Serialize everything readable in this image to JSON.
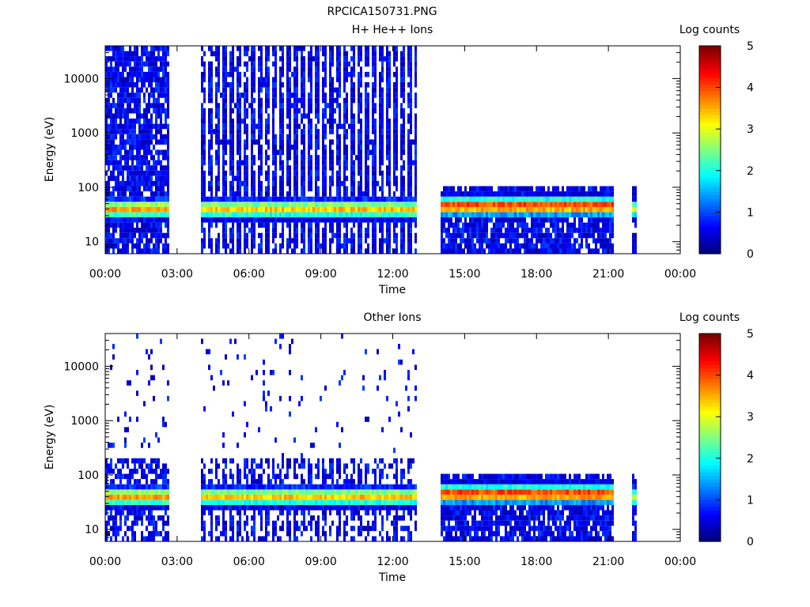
{
  "figure": {
    "filename_title": "RPCICA150731.PNG"
  },
  "chart_data": [
    {
      "type": "heatmap",
      "title": "H+ He++ Ions",
      "xlabel": "Time",
      "ylabel": "Energy (eV)",
      "yscale": "log",
      "ylim": [
        6,
        40000
      ],
      "xlim_hours": [
        0,
        24
      ],
      "x_tick_labels": [
        "00:00",
        "03:00",
        "06:00",
        "09:00",
        "12:00",
        "15:00",
        "18:00",
        "21:00",
        "00:00"
      ],
      "y_ticks": [
        10,
        100,
        1000,
        10000
      ],
      "y_tick_labels": [
        "10",
        "100",
        "1000",
        "10000"
      ],
      "colorbar": {
        "label": "Log counts",
        "range": [
          0,
          5
        ],
        "tick_labels": [
          "0",
          "1",
          "2",
          "3",
          "4",
          "5"
        ],
        "colormap": "jet"
      },
      "segments": [
        {
          "start_hour": 0.0,
          "end_hour": 2.65,
          "emax": 40000,
          "pattern": "dense",
          "peak_ev": 40,
          "peak_level": 3.6
        },
        {
          "start_hour": 4.0,
          "end_hour": 12.95,
          "emax": 40000,
          "pattern": "striped",
          "peak_ev": 40,
          "peak_level": 3.4
        },
        {
          "start_hour": 14.0,
          "end_hour": 21.2,
          "emax": 100,
          "pattern": "dense",
          "peak_ev": 45,
          "peak_level": 4.2
        },
        {
          "start_hour": 22.0,
          "end_hour": 22.2,
          "emax": 100,
          "pattern": "dense",
          "peak_ev": 40,
          "peak_level": 3.0
        }
      ]
    },
    {
      "type": "heatmap",
      "title": "Other Ions",
      "xlabel": "Time",
      "ylabel": "Energy (eV)",
      "yscale": "log",
      "ylim": [
        6,
        40000
      ],
      "xlim_hours": [
        0,
        24
      ],
      "x_tick_labels": [
        "00:00",
        "03:00",
        "06:00",
        "09:00",
        "12:00",
        "15:00",
        "18:00",
        "21:00",
        "00:00"
      ],
      "y_ticks": [
        10,
        100,
        1000,
        10000
      ],
      "y_tick_labels": [
        "10",
        "100",
        "1000",
        "10000"
      ],
      "colorbar": {
        "label": "Log counts",
        "range": [
          0,
          5
        ],
        "tick_labels": [
          "0",
          "1",
          "2",
          "3",
          "4",
          "5"
        ],
        "colormap": "jet"
      },
      "segments": [
        {
          "start_hour": 0.0,
          "end_hour": 2.65,
          "emax": 40000,
          "pattern": "sparse",
          "peak_ev": 40,
          "peak_level": 3.6
        },
        {
          "start_hour": 4.0,
          "end_hour": 12.95,
          "emax": 40000,
          "pattern": "sparse-striped",
          "peak_ev": 40,
          "peak_level": 3.4
        },
        {
          "start_hour": 14.0,
          "end_hour": 21.2,
          "emax": 100,
          "pattern": "dense",
          "peak_ev": 45,
          "peak_level": 4.2
        },
        {
          "start_hour": 22.0,
          "end_hour": 22.2,
          "emax": 100,
          "pattern": "dense",
          "peak_ev": 40,
          "peak_level": 3.0
        }
      ]
    }
  ]
}
